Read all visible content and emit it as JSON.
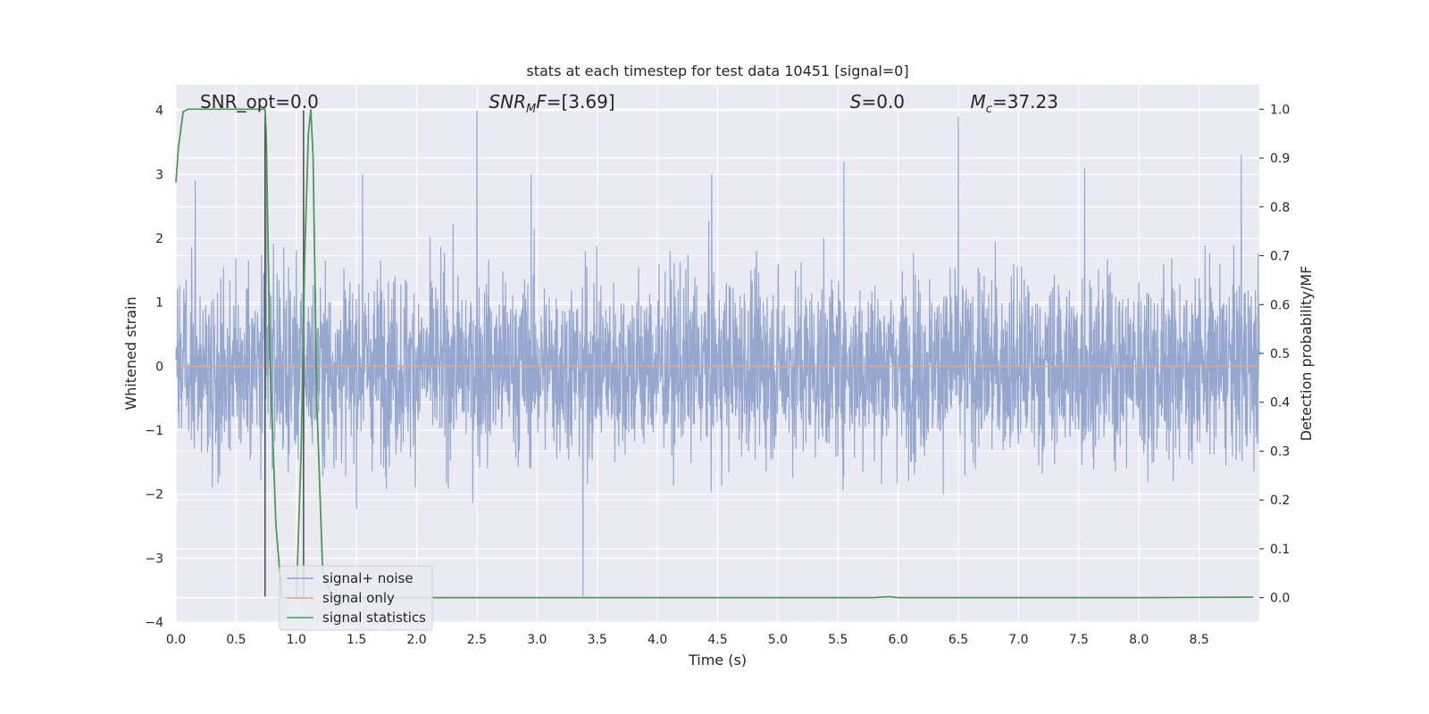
{
  "chart_data": {
    "type": "line",
    "title": "stats at each timestep for test data 10451 [signal=0]",
    "xlabel": "Time (s)",
    "ylabel": "Whitened strain",
    "ylabel_right": "Detection probability/MF",
    "xlim": [
      0.0,
      9.0
    ],
    "ylim": [
      -4,
      4.4
    ],
    "ylim_right": [
      -0.05,
      1.05
    ],
    "xticks": [
      "0.0",
      "0.5",
      "1.0",
      "1.5",
      "2.0",
      "2.5",
      "3.0",
      "3.5",
      "4.0",
      "4.5",
      "5.0",
      "5.5",
      "6.0",
      "6.5",
      "7.0",
      "7.5",
      "8.0",
      "8.5"
    ],
    "yticks": [
      "4",
      "3",
      "2",
      "1",
      "0",
      "−1",
      "−2",
      "−3",
      "−4"
    ],
    "yticks_right": [
      "1.0",
      "0.9",
      "0.8",
      "0.7",
      "0.6",
      "0.5",
      "0.4",
      "0.3",
      "0.2",
      "0.1",
      "0.0"
    ],
    "grid": true,
    "legend_position": "lower-left",
    "series": [
      {
        "name": "signal+ noise",
        "color": "#8da0cb",
        "axis": "left",
        "note": "dense whitened noise, roughly within ±2.5 with peaks to ~4 and -3.6",
        "peaks": [
          {
            "x": 0.16,
            "y": 2.9
          },
          {
            "x": 0.75,
            "y": 3.1
          },
          {
            "x": 1.55,
            "y": 3.0
          },
          {
            "x": 2.5,
            "y": 4.0
          },
          {
            "x": 2.95,
            "y": 3.0
          },
          {
            "x": 3.38,
            "y": -3.6
          },
          {
            "x": 4.45,
            "y": 3.0
          },
          {
            "x": 5.55,
            "y": 3.2
          },
          {
            "x": 6.5,
            "y": 3.9
          },
          {
            "x": 7.55,
            "y": 3.1
          },
          {
            "x": 8.85,
            "y": 3.3
          }
        ]
      },
      {
        "name": "signal only",
        "color": "#e7a58a",
        "axis": "left",
        "x": [
          0.0,
          9.0
        ],
        "y": [
          0.0,
          0.0
        ]
      },
      {
        "name": "signal statistics",
        "color": "#4c9a55",
        "axis": "right",
        "x": [
          0.0,
          0.02,
          0.06,
          0.1,
          0.2,
          0.4,
          0.6,
          0.73,
          0.74,
          0.75,
          0.78,
          0.83,
          0.88,
          0.95,
          1.0,
          1.04,
          1.07,
          1.1,
          1.12,
          1.14,
          1.17,
          1.22,
          1.3,
          1.5,
          2.0,
          3.0,
          4.0,
          5.0,
          5.8,
          5.92,
          6.0,
          7.0,
          8.0,
          8.95
        ],
        "y": [
          0.85,
          0.92,
          0.995,
          1.0,
          1.0,
          1.0,
          1.0,
          1.0,
          1.0,
          0.95,
          0.5,
          0.15,
          0.0,
          0.0,
          0.0,
          0.3,
          0.7,
          0.95,
          1.0,
          0.9,
          0.4,
          0.05,
          0.0,
          0.0,
          0.0,
          0.0,
          0.0,
          0.0,
          0.0,
          0.002,
          0.0,
          0.0,
          0.0,
          0.001
        ]
      }
    ],
    "vlines": [
      {
        "x": 0.74,
        "y_from": -3.6,
        "y_to": 4.0,
        "color": "#4a4a4a"
      },
      {
        "x": 1.06,
        "y_from": -3.6,
        "y_to": 4.0,
        "color": "#4a4a4a"
      }
    ],
    "annotations": [
      {
        "x": 0.2,
        "prefix": "SNR_opt=",
        "value": "0.0"
      },
      {
        "x": 2.6,
        "prefix": "SNR_MF=",
        "value": "[3.69]"
      },
      {
        "x": 5.6,
        "prefix": "S=",
        "value": "0.0"
      },
      {
        "x": 6.6,
        "prefix": "M_c=",
        "value": "37.23"
      }
    ]
  }
}
